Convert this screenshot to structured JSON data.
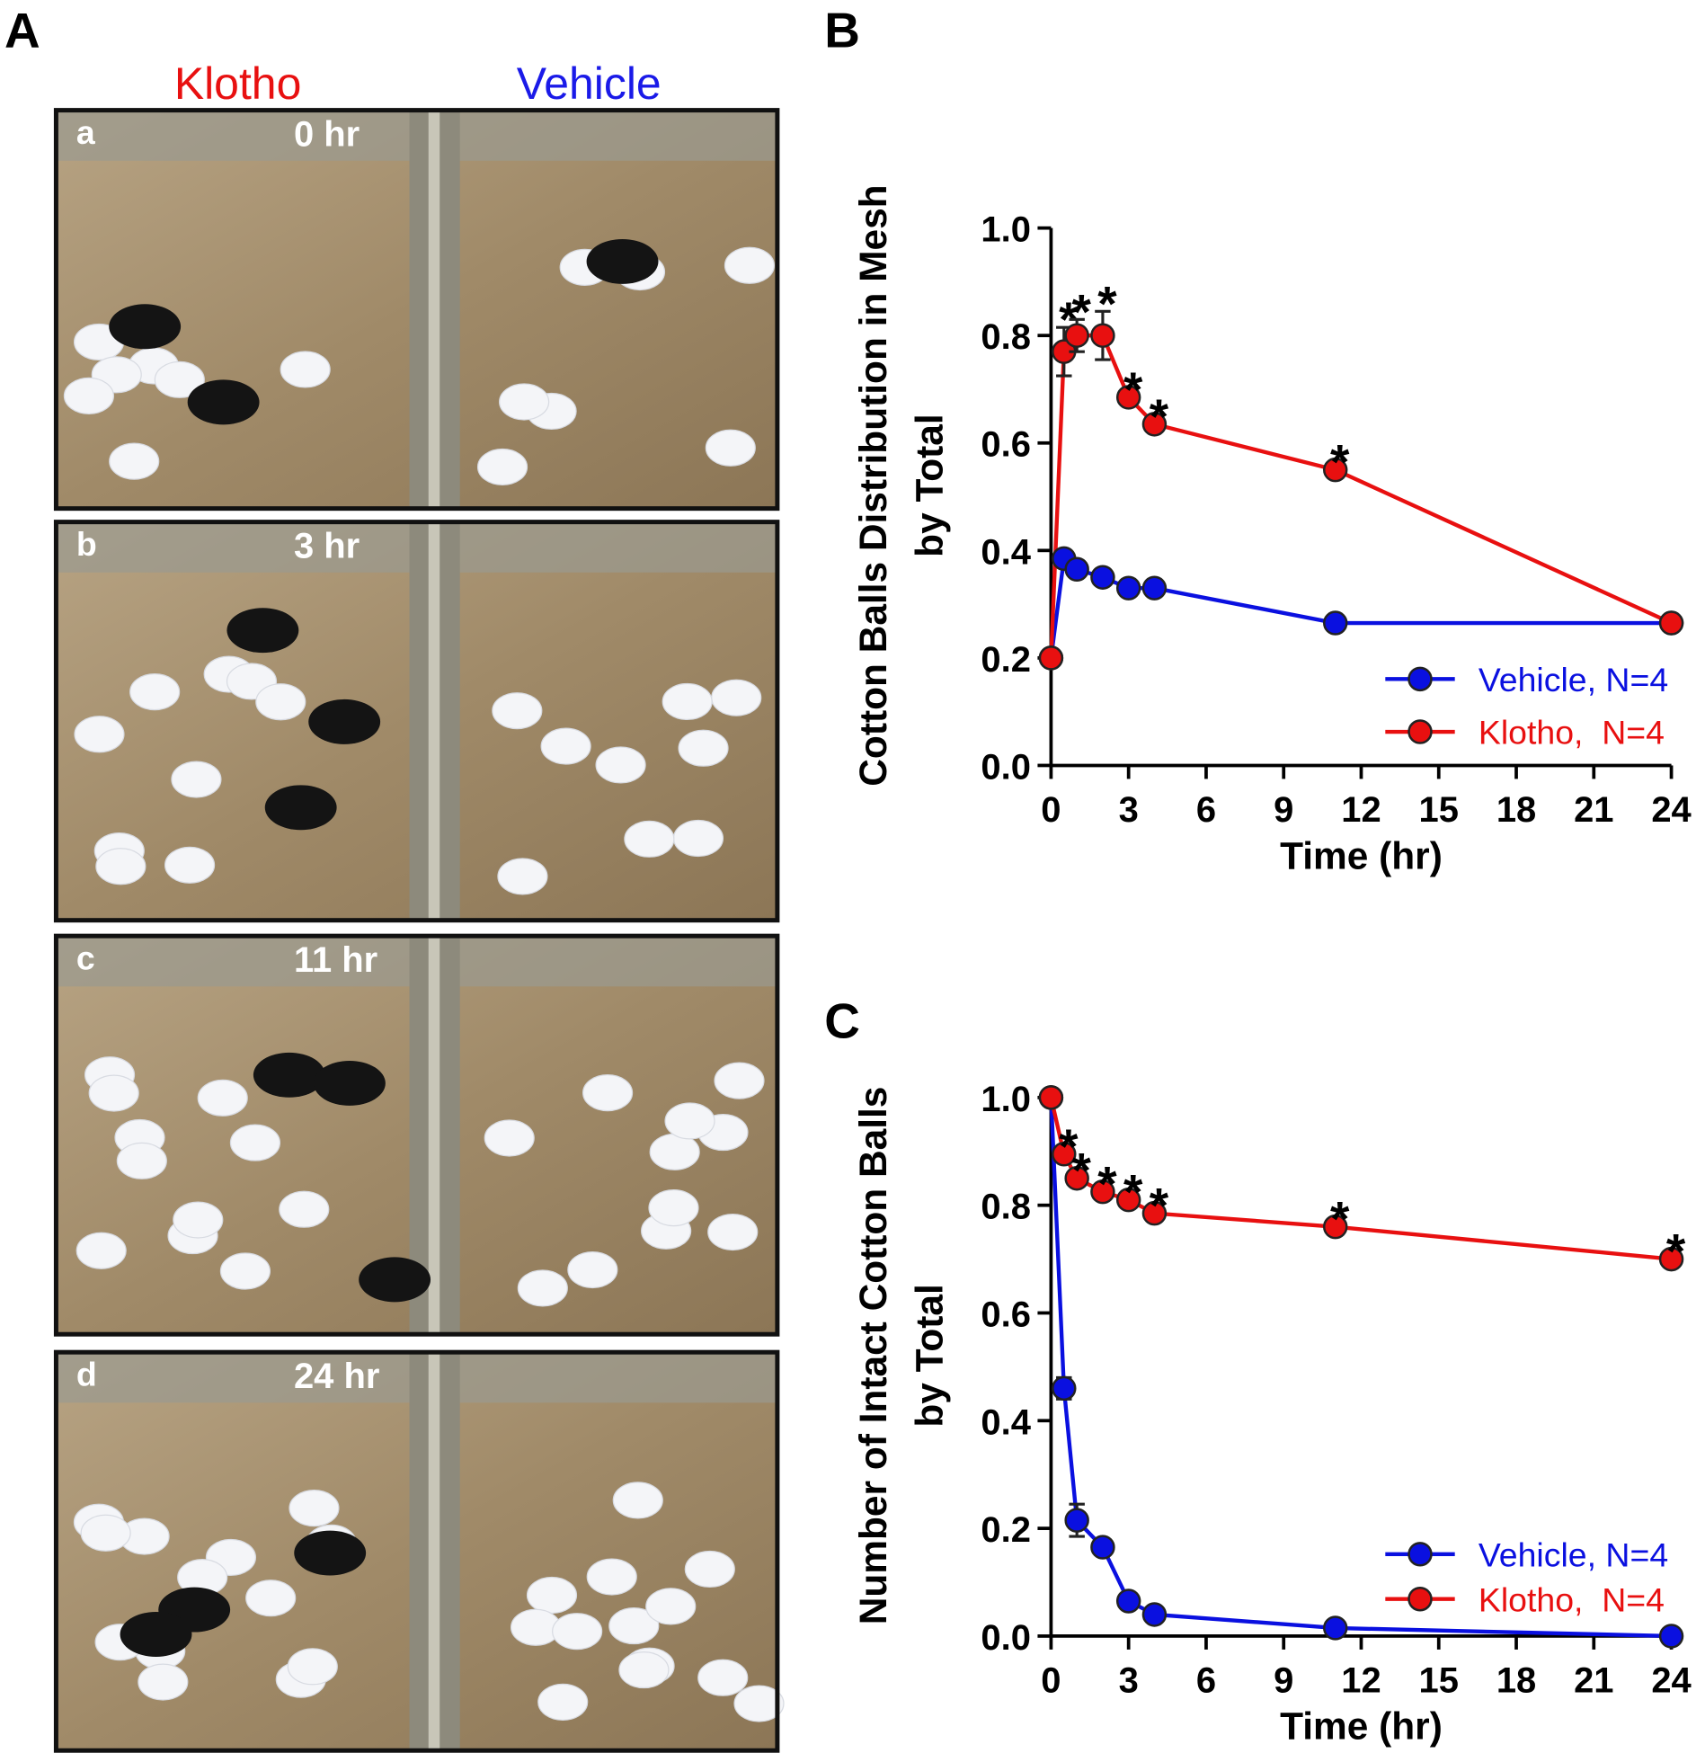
{
  "panel_a": {
    "label": "A",
    "columns": [
      "Klotho",
      "Vehicle"
    ],
    "photos": [
      {
        "letter": "a",
        "time": "0 hr"
      },
      {
        "letter": "b",
        "time": "3 hr"
      },
      {
        "letter": "c",
        "time": "11 hr"
      },
      {
        "letter": "d",
        "time": "24 hr"
      }
    ]
  },
  "chart_data": [
    {
      "type": "line",
      "panel_label": "B",
      "ylabel": [
        "Cotton Balls Distribution in Mesh",
        "by Total"
      ],
      "xlabel": "Time (hr)",
      "x": [
        0,
        0.5,
        1,
        2,
        3,
        4,
        11,
        24
      ],
      "xlim": [
        0,
        24
      ],
      "xticks": [
        0,
        3,
        6,
        9,
        12,
        15,
        18,
        21,
        24
      ],
      "ylim": [
        0,
        1
      ],
      "yticks": [
        {
          "value": 0,
          "label": "0.0"
        },
        0.2,
        0.4,
        0.6,
        0.8,
        {
          "value": 1,
          "label": "1.0"
        }
      ],
      "legend": "lower right",
      "series": [
        {
          "name": "Vehicle, N=4",
          "color": "#0a10e0",
          "values": [
            0.2,
            0.385,
            0.365,
            0.35,
            0.33,
            0.33,
            0.265,
            0.265
          ]
        },
        {
          "name": "Klotho,  N=4",
          "color": "#e81010",
          "values": [
            0.2,
            0.77,
            0.8,
            0.8,
            0.685,
            0.635,
            0.55,
            0.265
          ],
          "errors": [
            null,
            0.045,
            0.03,
            0.045,
            null,
            null,
            null,
            null
          ],
          "labels": [
            null,
            "*",
            "*",
            "*",
            "*",
            "*",
            "*",
            null
          ]
        }
      ]
    },
    {
      "type": "line",
      "panel_label": "C",
      "ylabel": [
        "Number of Intact Cotton Balls",
        "by Total"
      ],
      "xlabel": "Time (hr)",
      "x": [
        0,
        0.5,
        1,
        2,
        3,
        4,
        11,
        24
      ],
      "xlim": [
        0,
        24
      ],
      "xticks": [
        0,
        3,
        6,
        9,
        12,
        15,
        18,
        21,
        24
      ],
      "ylim": [
        0,
        1
      ],
      "yticks": [
        {
          "value": 0,
          "label": "0.0"
        },
        0.2,
        0.4,
        0.6,
        0.8,
        {
          "value": 1,
          "label": "1.0"
        }
      ],
      "legend": "lower right",
      "series": [
        {
          "name": "Vehicle, N=4",
          "color": "#0a10e0",
          "values": [
            1,
            0.46,
            0.215,
            0.165,
            0.065,
            0.04,
            0.015,
            0
          ],
          "errors": [
            null,
            0.02,
            0.03,
            null,
            null,
            null,
            null,
            null
          ]
        },
        {
          "name": "Klotho,  N=4",
          "color": "#e81010",
          "values": [
            1,
            0.895,
            0.85,
            0.825,
            0.81,
            0.785,
            0.76,
            0.7
          ],
          "labels": [
            null,
            "*",
            "*",
            "*",
            "*",
            "*",
            "*",
            "*"
          ]
        }
      ]
    }
  ]
}
